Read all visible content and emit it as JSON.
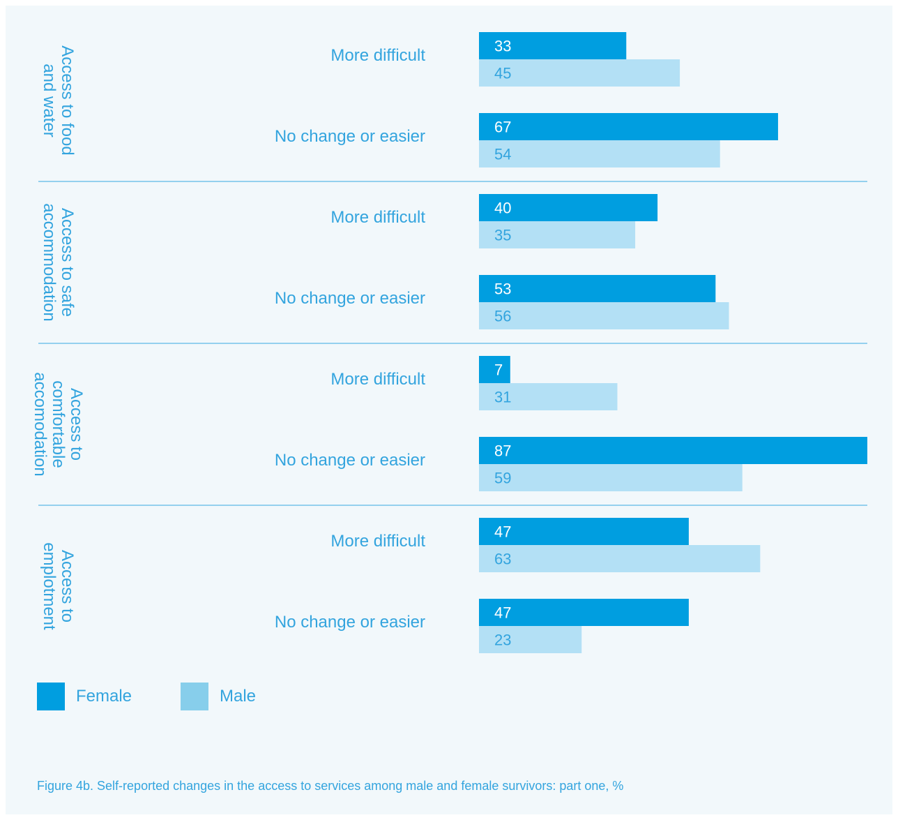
{
  "chart_data": {
    "type": "bar",
    "orientation": "horizontal",
    "groups": [
      {
        "label": "Access to food\nand water",
        "rows": [
          {
            "label": "More difficult",
            "female": 33,
            "male": 45
          },
          {
            "label": "No change or easier",
            "female": 67,
            "male": 54
          }
        ]
      },
      {
        "label": "Access to safe\naccommodation",
        "rows": [
          {
            "label": "More difficult",
            "female": 40,
            "male": 35
          },
          {
            "label": "No change or easier",
            "female": 53,
            "male": 56
          }
        ]
      },
      {
        "label": "Access to\ncomfortable\naccomodation",
        "rows": [
          {
            "label": "More difficult",
            "female": 7,
            "male": 31
          },
          {
            "label": "No change or easier",
            "female": 87,
            "male": 59
          }
        ]
      },
      {
        "label": "Access to\nemplotment",
        "rows": [
          {
            "label": "More difficult",
            "female": 47,
            "male": 63
          },
          {
            "label": "No change or easier",
            "female": 47,
            "male": 23
          }
        ]
      }
    ],
    "series": [
      {
        "name": "Female",
        "key": "female",
        "color": "#009ee0"
      },
      {
        "name": "Male",
        "key": "male",
        "color": "#b3e0f5"
      }
    ],
    "xlim": [
      0,
      87
    ],
    "legend_position": "bottom-left",
    "label_color": "#33a4de",
    "divider_color": "#5bb8e6"
  },
  "legend": {
    "female_label": "Female",
    "male_label": "Male",
    "female_color": "#009ee0",
    "male_color": "#87ceeb"
  },
  "caption": "Figure 4b. Self-reported changes in the access to services among male and female survivors: part one, %"
}
